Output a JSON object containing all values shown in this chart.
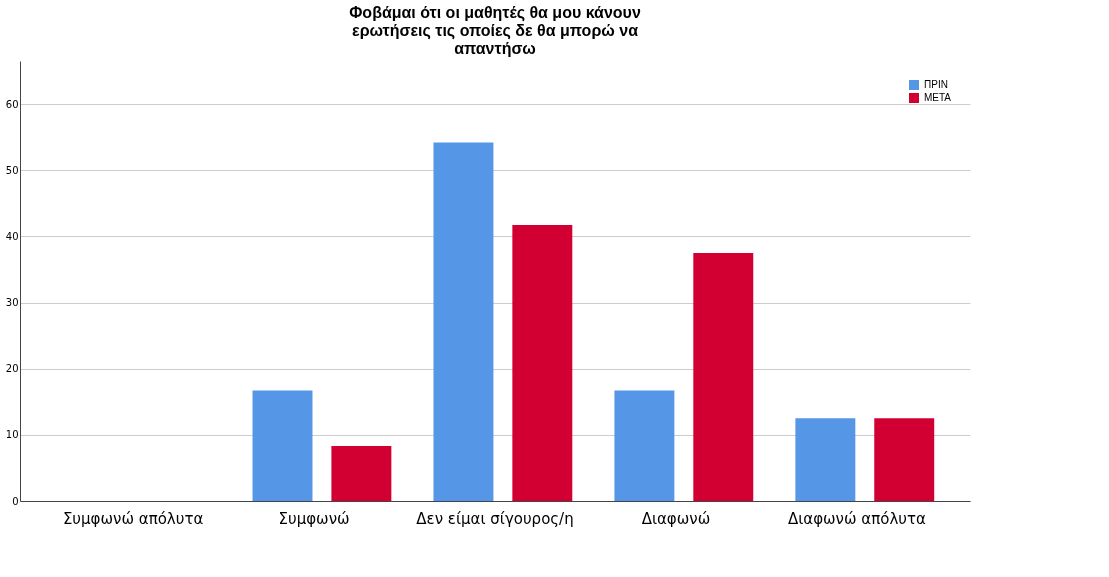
{
  "chart_data": {
    "type": "bar",
    "title": "Φοβάμαι ότι οι μαθητές θα μου κάνουν ερωτήσεις τις οποίες δε θα μπορώ να απαντήσω",
    "categories": [
      "Συμφωνώ απόλυτα",
      "Συμφωνώ",
      "Δεν είμαι σίγουρος/η",
      "Διαφωνώ",
      "Διαφωνώ απόλυτα"
    ],
    "series": [
      {
        "name": "ΠΡΙΝ",
        "color": "#5596e6",
        "values": [
          0,
          16.7,
          54.2,
          16.7,
          12.5
        ]
      },
      {
        "name": "ΜΕΤΑ",
        "color": "#d20032",
        "values": [
          0,
          8.3,
          41.7,
          37.5,
          12.5
        ]
      }
    ],
    "ylim": [
      0,
      66.5
    ],
    "yticks": [
      0,
      10,
      20,
      30,
      40,
      50,
      60
    ],
    "grid": "y",
    "legend": "top right"
  }
}
